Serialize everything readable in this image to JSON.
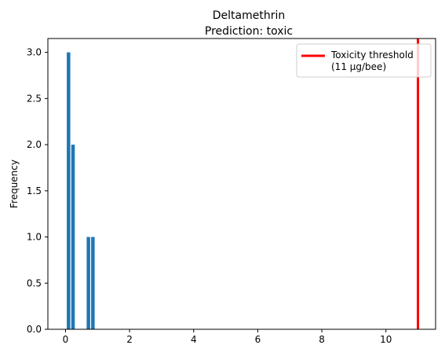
{
  "chart_data": {
    "type": "bar",
    "title": "Deltamethrin",
    "subtitle": "Prediction: toxic",
    "xlabel": "",
    "ylabel": "Frequency",
    "xlim": [
      -0.55,
      11.55
    ],
    "ylim": [
      0,
      3.15
    ],
    "xticks": [
      0,
      2,
      4,
      6,
      8,
      10
    ],
    "yticks": [
      0.0,
      0.5,
      1.0,
      1.5,
      2.0,
      2.5,
      3.0
    ],
    "bar_color": "#1f77b4",
    "bins": [
      {
        "x0": 0.04,
        "x1": 0.15,
        "count": 3
      },
      {
        "x0": 0.18,
        "x1": 0.29,
        "count": 2
      },
      {
        "x0": 0.66,
        "x1": 0.77,
        "count": 1
      },
      {
        "x0": 0.8,
        "x1": 0.91,
        "count": 1
      }
    ],
    "threshold": {
      "value": 11,
      "color": "#ff0000",
      "label_line1": "Toxicity threshold",
      "label_line2": "(11 µg/bee)"
    },
    "legend_position": "upper right",
    "grid": false
  }
}
